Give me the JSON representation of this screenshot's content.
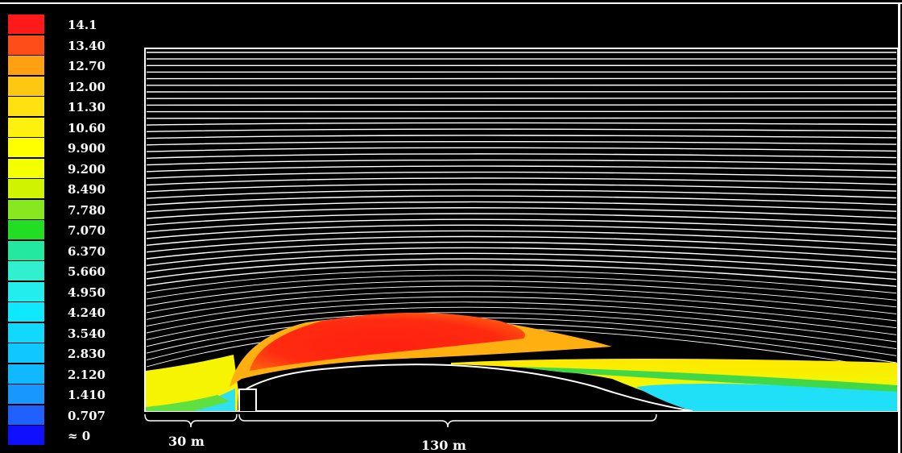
{
  "legend": {
    "labels": [
      "14.1",
      "13.40",
      "12.70",
      "12.00",
      "11.30",
      "10.60",
      "9.900",
      "9.200",
      "8.490",
      "7.780",
      "7.070",
      "6.370",
      "5.660",
      "4.950",
      "4.240",
      "3.540",
      "2.830",
      "2.120",
      "1.410",
      "0.707",
      "≈ 0"
    ],
    "colors": [
      "#ff1a1a",
      "#ff4d1a",
      "#ffa010",
      "#ffc810",
      "#ffe010",
      "#fff010",
      "#ffff00",
      "#f4ff00",
      "#d0f400",
      "#88e820",
      "#22dd22",
      "#22e8a0",
      "#30f0d0",
      "#22eeee",
      "#10e8ff",
      "#10d8ff",
      "#10c8ff",
      "#10b8ff",
      "#1898ff",
      "#2060ff",
      "#1010ff"
    ]
  },
  "dimensions": {
    "left": "30 m",
    "right": "130 m"
  }
}
